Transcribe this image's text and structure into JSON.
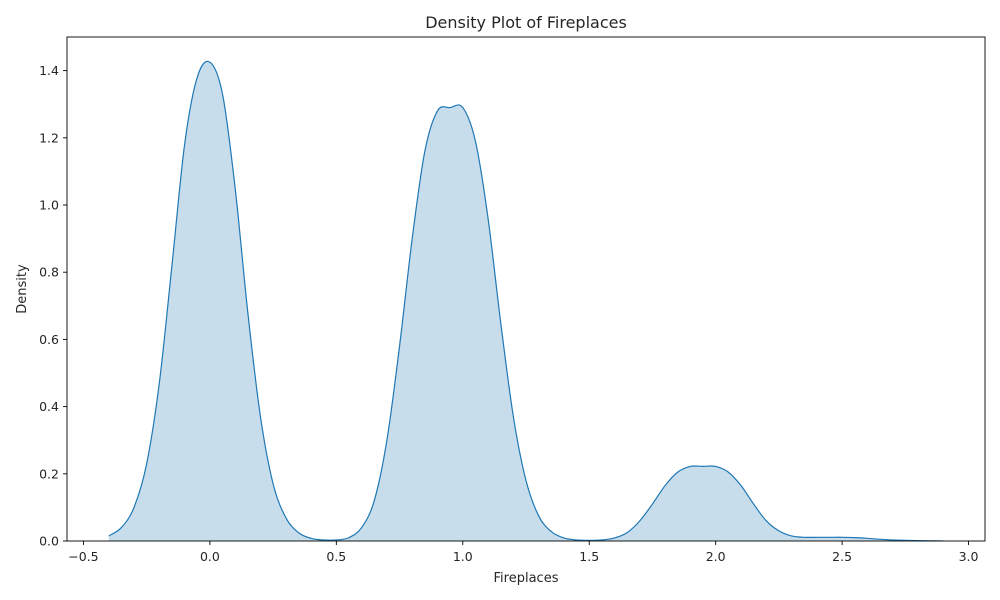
{
  "chart_data": {
    "type": "area",
    "title": "Density Plot of Fireplaces",
    "xlabel": "Fireplaces",
    "ylabel": "Density",
    "xlim": [
      -0.565,
      3.065
    ],
    "ylim": [
      0,
      1.5
    ],
    "x_ticks": [
      -0.5,
      0.0,
      0.5,
      1.0,
      1.5,
      2.0,
      2.5,
      3.0
    ],
    "x_tick_labels": [
      "−0.5",
      "0.0",
      "0.5",
      "1.0",
      "1.5",
      "2.0",
      "2.5",
      "3.0"
    ],
    "y_ticks": [
      0.0,
      0.2,
      0.4,
      0.6,
      0.8,
      1.0,
      1.2,
      1.4
    ],
    "y_tick_labels": [
      "0.0",
      "0.2",
      "0.4",
      "0.6",
      "0.8",
      "1.0",
      "1.2",
      "1.4"
    ],
    "grid": false,
    "line_color": "#1f77b4",
    "fill_color": "#1f77b4",
    "fill_opacity": 0.25,
    "series": [
      {
        "x": [
          -0.4,
          -0.35,
          -0.3,
          -0.25,
          -0.2,
          -0.15,
          -0.1,
          -0.05,
          0.0,
          0.05,
          0.1,
          0.15,
          0.2,
          0.25,
          0.3,
          0.35,
          0.4,
          0.45,
          0.5,
          0.55,
          0.6,
          0.65,
          0.7,
          0.75,
          0.8,
          0.85,
          0.9,
          0.95,
          1.0,
          1.05,
          1.1,
          1.15,
          1.2,
          1.25,
          1.3,
          1.35,
          1.4,
          1.45,
          1.5,
          1.55,
          1.6,
          1.65,
          1.7,
          1.75,
          1.8,
          1.85,
          1.9,
          1.95,
          2.0,
          2.05,
          2.1,
          2.15,
          2.2,
          2.25,
          2.3,
          2.35,
          2.4,
          2.45,
          2.5,
          2.55,
          2.6,
          2.65,
          2.7,
          2.75,
          2.8,
          2.85,
          2.9
        ],
        "y": [
          0.015,
          0.04,
          0.1,
          0.23,
          0.47,
          0.82,
          1.18,
          1.38,
          1.425,
          1.33,
          1.05,
          0.68,
          0.37,
          0.17,
          0.07,
          0.025,
          0.008,
          0.003,
          0.003,
          0.01,
          0.04,
          0.12,
          0.3,
          0.58,
          0.9,
          1.16,
          1.28,
          1.29,
          1.29,
          1.19,
          0.96,
          0.65,
          0.37,
          0.18,
          0.075,
          0.028,
          0.009,
          0.003,
          0.002,
          0.003,
          0.009,
          0.025,
          0.06,
          0.11,
          0.165,
          0.205,
          0.222,
          0.222,
          0.222,
          0.205,
          0.165,
          0.11,
          0.06,
          0.03,
          0.015,
          0.011,
          0.011,
          0.011,
          0.011,
          0.01,
          0.008,
          0.005,
          0.003,
          0.002,
          0.001,
          0.0005,
          0.0002
        ]
      }
    ]
  }
}
